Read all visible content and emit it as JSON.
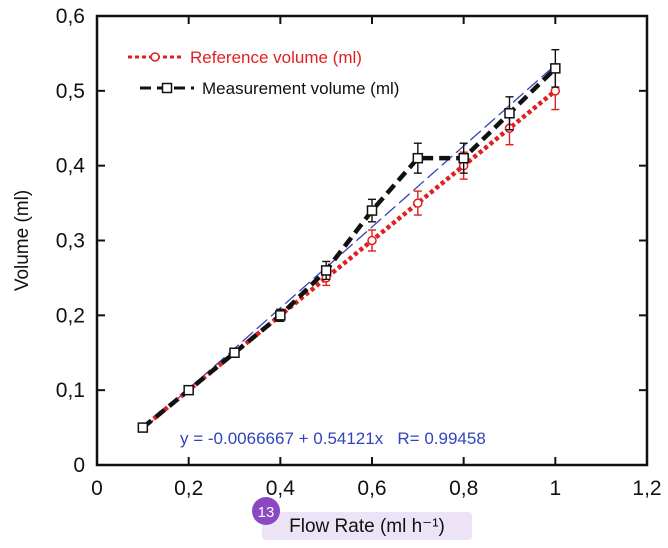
{
  "chart_data": {
    "type": "line",
    "xlabel": "Flow Rate (ml h⁻¹)",
    "ylabel": "Volume (ml)",
    "xlim": [
      0,
      1.2
    ],
    "ylim": [
      0,
      0.6
    ],
    "xticks": [
      "0",
      "0,2",
      "0,4",
      "0,6",
      "0,8",
      "1",
      "1,2"
    ],
    "yticks": [
      "0",
      "0,1",
      "0,2",
      "0,3",
      "0,4",
      "0,5",
      "0,6"
    ],
    "x": [
      0.1,
      0.2,
      0.3,
      0.4,
      0.5,
      0.6,
      0.7,
      0.8,
      0.9,
      1.0
    ],
    "series": [
      {
        "name": "Reference volume (ml)",
        "values": [
          0.05,
          0.1,
          0.15,
          0.2,
          0.25,
          0.3,
          0.35,
          0.4,
          0.45,
          0.5
        ],
        "errors": [
          0.004,
          0.004,
          0.006,
          0.008,
          0.01,
          0.014,
          0.016,
          0.018,
          0.022,
          0.025
        ],
        "color": "#e02020",
        "marker": "circle",
        "linestyle": "dotted"
      },
      {
        "name": "Measurement volume (ml)",
        "values": [
          0.05,
          0.1,
          0.15,
          0.2,
          0.26,
          0.34,
          0.41,
          0.41,
          0.47,
          0.53
        ],
        "errors": [
          0.004,
          0.004,
          0.006,
          0.008,
          0.012,
          0.015,
          0.02,
          0.02,
          0.022,
          0.025
        ],
        "color": "#111111",
        "marker": "square",
        "linestyle": "dashed"
      }
    ],
    "fit": {
      "label": "y = -0.0066667 + 0.54121x   R= 0.99458",
      "intercept": -0.0066667,
      "slope": 0.54121,
      "x_range": [
        0.1,
        1.0
      ],
      "color": "#3344bb"
    },
    "legend_position": "top-left",
    "grid": false
  },
  "badge": {
    "text": "13",
    "color": "#8a49c2"
  }
}
